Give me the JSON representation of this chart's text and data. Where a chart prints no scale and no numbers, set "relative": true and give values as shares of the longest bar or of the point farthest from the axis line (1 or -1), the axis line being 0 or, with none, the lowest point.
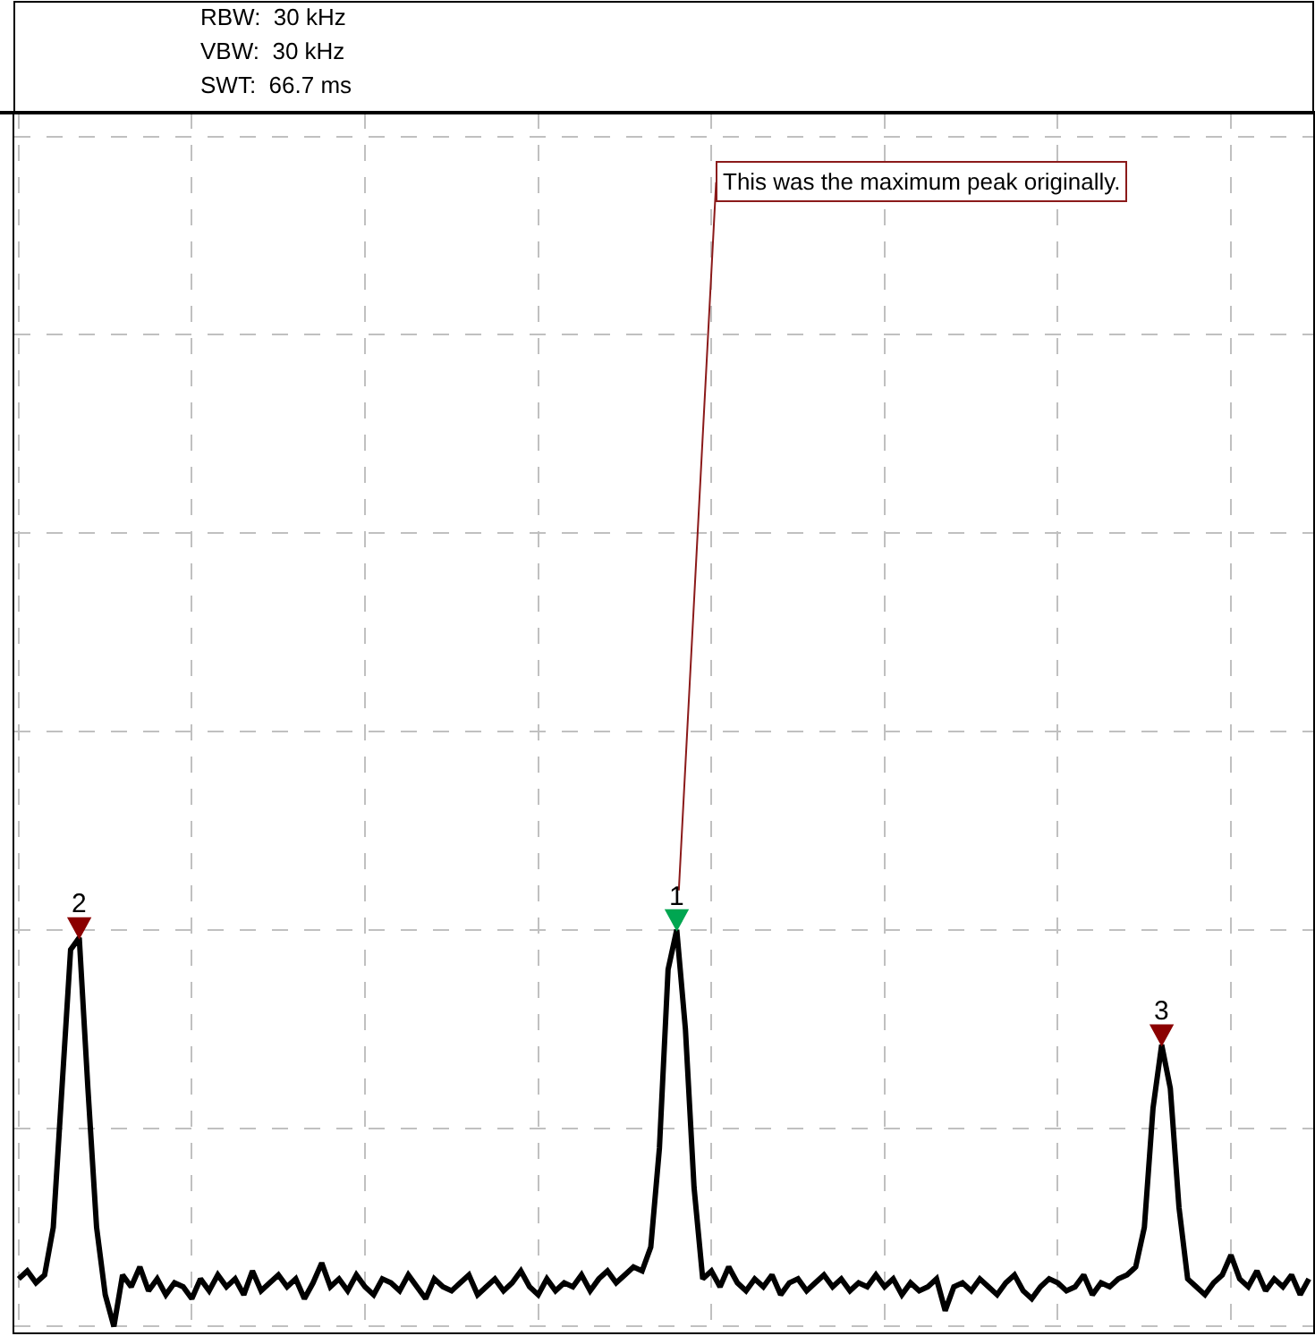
{
  "chart_data": {
    "type": "line",
    "relative": true,
    "grid": true,
    "annotations": [
      "RBW:  30 kHz",
      "VBW:  30 kHz",
      "SWT:  66.7 ms",
      "This was the maximum peak originally.",
      "1",
      "2",
      "3"
    ],
    "categories": [
      null,
      null,
      null,
      null,
      null,
      null,
      null,
      null,
      null,
      null,
      null,
      null,
      null,
      null,
      null,
      null,
      null,
      null,
      null,
      null,
      null,
      null,
      null,
      null,
      null,
      null,
      null,
      null,
      null,
      null,
      null,
      null,
      null,
      null,
      null,
      null,
      null,
      null,
      null,
      null,
      null,
      null,
      null,
      null,
      null,
      null,
      null,
      null,
      null,
      null,
      null,
      null,
      null,
      null,
      null,
      null,
      null,
      null,
      null,
      null,
      null,
      null,
      null,
      null,
      null,
      null,
      null,
      null,
      null,
      null,
      null,
      null,
      null,
      null,
      null,
      null,
      null,
      null,
      null,
      null,
      null,
      null,
      null,
      null,
      null,
      null,
      null,
      null,
      null,
      null,
      null,
      null,
      null,
      null,
      null,
      null,
      null,
      null,
      null,
      null,
      null,
      null,
      null,
      null,
      null,
      null,
      null,
      null,
      null,
      null,
      null,
      null,
      null,
      null,
      null,
      null,
      null,
      null,
      null,
      null,
      null,
      null,
      null,
      null,
      null,
      null,
      null,
      null,
      null,
      null,
      null,
      null,
      null,
      null,
      null,
      null,
      null,
      null,
      null,
      null,
      null,
      null,
      null,
      null,
      null,
      null,
      null,
      null,
      null,
      null
    ],
    "series": [
      {
        "color": "#000000",
        "line_style": "solid",
        "values": [
          0.12,
          0.14,
          0.11,
          0.13,
          0.25,
          0.6,
          0.95,
          0.98,
          0.6,
          0.25,
          0.08,
          0.0,
          0.13,
          0.1,
          0.15,
          0.09,
          0.12,
          0.08,
          0.11,
          0.1,
          0.07,
          0.12,
          0.09,
          0.13,
          0.1,
          0.12,
          0.08,
          0.14,
          0.09,
          0.11,
          0.13,
          0.1,
          0.12,
          0.07,
          0.11,
          0.16,
          0.1,
          0.12,
          0.09,
          0.13,
          0.1,
          0.08,
          0.12,
          0.11,
          0.09,
          0.13,
          0.1,
          0.07,
          0.12,
          0.1,
          0.09,
          0.11,
          0.13,
          0.08,
          0.1,
          0.12,
          0.09,
          0.11,
          0.14,
          0.1,
          0.08,
          0.12,
          0.09,
          0.11,
          0.1,
          0.13,
          0.09,
          0.12,
          0.14,
          0.11,
          0.13,
          0.15,
          0.14,
          0.2,
          0.45,
          0.9,
          1.0,
          0.75,
          0.35,
          0.12,
          0.14,
          0.1,
          0.15,
          0.11,
          0.09,
          0.12,
          0.1,
          0.13,
          0.08,
          0.11,
          0.12,
          0.09,
          0.11,
          0.13,
          0.1,
          0.12,
          0.09,
          0.11,
          0.1,
          0.13,
          0.1,
          0.12,
          0.08,
          0.11,
          0.09,
          0.1,
          0.12,
          0.04,
          0.1,
          0.11,
          0.09,
          0.12,
          0.1,
          0.08,
          0.11,
          0.13,
          0.09,
          0.07,
          0.1,
          0.12,
          0.11,
          0.09,
          0.1,
          0.13,
          0.08,
          0.11,
          0.1,
          0.12,
          0.13,
          0.15,
          0.25,
          0.55,
          0.71,
          0.6,
          0.3,
          0.12,
          0.1,
          0.08,
          0.11,
          0.13,
          0.18,
          0.12,
          0.1,
          0.14,
          0.09,
          0.12,
          0.1,
          0.13,
          0.08,
          0.12
        ]
      }
    ]
  }
}
